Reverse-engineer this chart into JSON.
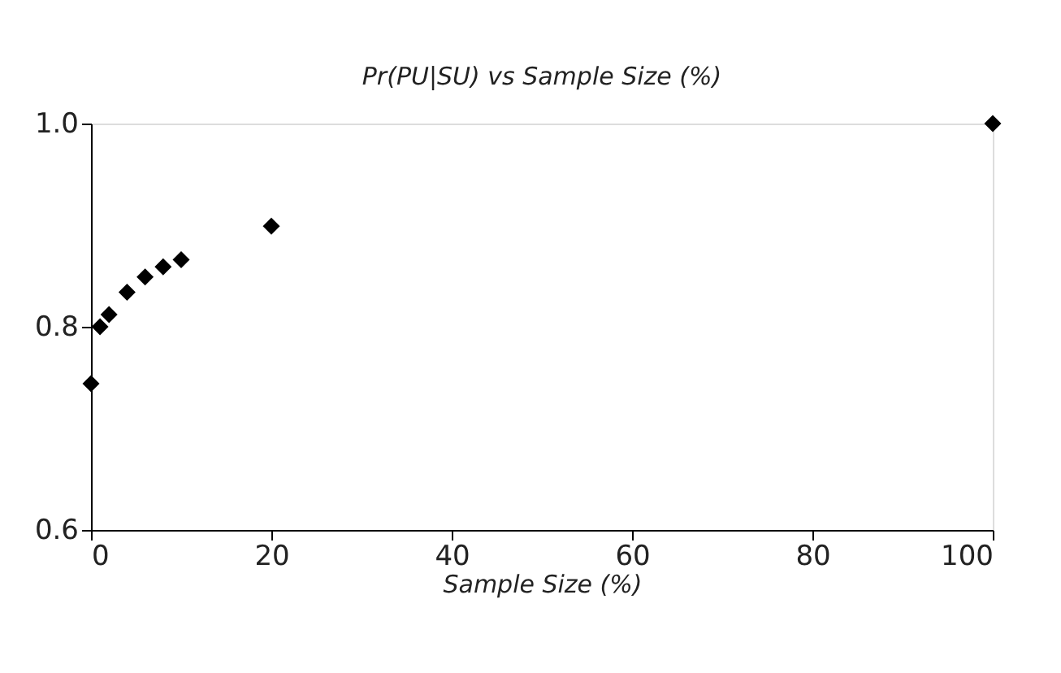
{
  "chart_data": {
    "type": "scatter",
    "title": "Pr(PU|SU) vs Sample Size (%)",
    "xlabel": "Sample Size (%)",
    "x": [
      0,
      1,
      2,
      4,
      6,
      8,
      10,
      20,
      100
    ],
    "series": [
      {
        "color": "#000000",
        "values": [
          0.744,
          0.8,
          0.812,
          0.834,
          0.849,
          0.859,
          0.866,
          0.899,
          1.0
        ]
      }
    ],
    "xlim": [
      0,
      100
    ],
    "xticks": [
      0,
      20,
      40,
      60,
      80,
      100
    ],
    "ylim": [
      0.6,
      1.0
    ],
    "yticks": [
      {
        "value": 0.6,
        "label": "0.6"
      },
      {
        "value": 0.8,
        "label": "0.8"
      },
      {
        "value": 1.0,
        "label": "1.0"
      }
    ],
    "grid": false,
    "legend": false,
    "marker": "diamond"
  }
}
